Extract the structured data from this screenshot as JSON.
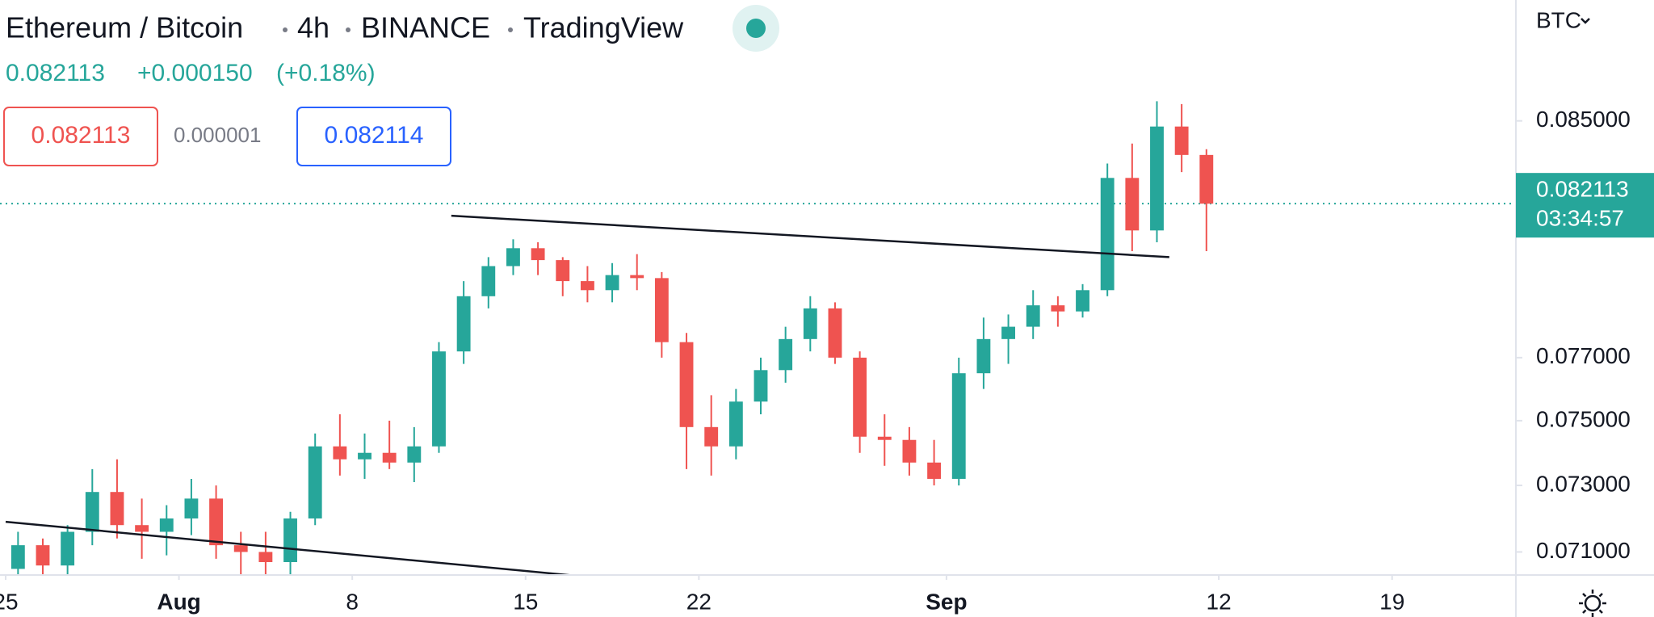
{
  "chart_data": {
    "type": "candlestick",
    "title": "Ethereum / Bitcoin",
    "interval": "4h",
    "exchange": "BINANCE",
    "source": "TradingView",
    "last_text": "0.082113",
    "change_text": "+0.000150",
    "change_pct_text": "(+0.18%)",
    "bid_text": "0.082113",
    "spread_text": "0.000001",
    "ask_text": "0.082114",
    "currency": "BTC",
    "last_price": 0.082113,
    "countdown": "03:34:57",
    "up_color": "#26a69a",
    "down_color": "#ef5350",
    "yscale": "log",
    "ylim": [
      0.07032,
      0.0894
    ],
    "yticks": [
      {
        "value": 0.071,
        "label": "0.071000"
      },
      {
        "value": 0.073,
        "label": "0.073000"
      },
      {
        "value": 0.075,
        "label": "0.075000"
      },
      {
        "value": 0.077,
        "label": "0.077000"
      },
      {
        "value": 0.085,
        "label": "0.085000"
      }
    ],
    "xlim": [
      "07-25",
      "09-24"
    ],
    "xticks": [
      {
        "value": "07-25",
        "label": "25"
      },
      {
        "value": "08-01",
        "label": "Aug"
      },
      {
        "value": "08-08",
        "label": "8"
      },
      {
        "value": "08-15",
        "label": "15"
      },
      {
        "value": "08-22",
        "label": "22"
      },
      {
        "value": "09-01",
        "label": "Sep"
      },
      {
        "value": "09-12",
        "label": "12"
      },
      {
        "value": "09-19",
        "label": "19"
      }
    ],
    "x": [
      "07-25",
      "07-26",
      "07-27",
      "07-28",
      "07-29",
      "07-30",
      "07-31",
      "08-01",
      "08-02",
      "08-03",
      "08-04",
      "08-05",
      "08-06",
      "08-07",
      "08-08",
      "08-09",
      "08-10",
      "08-11",
      "08-12",
      "08-13",
      "08-14",
      "08-15",
      "08-16",
      "08-17",
      "08-18",
      "08-19",
      "08-20",
      "08-21",
      "08-22",
      "08-23",
      "08-24",
      "08-25",
      "08-26",
      "08-27",
      "08-28",
      "08-29",
      "08-30",
      "08-31",
      "09-01",
      "09-02",
      "09-03",
      "09-04",
      "09-05",
      "09-06",
      "09-07",
      "09-08",
      "09-09",
      "09-10",
      "09-11"
    ],
    "open": [
      0.0705,
      0.0712,
      0.0706,
      0.0716,
      0.0728,
      0.0718,
      0.0716,
      0.072,
      0.0726,
      0.0712,
      0.071,
      0.0707,
      0.072,
      0.0742,
      0.0738,
      0.074,
      0.0737,
      0.0742,
      0.0772,
      0.079,
      0.08,
      0.0806,
      0.0802,
      0.0795,
      0.0792,
      0.0797,
      0.0796,
      0.0775,
      0.0748,
      0.0742,
      0.0756,
      0.0766,
      0.0776,
      0.0786,
      0.077,
      0.0745,
      0.0744,
      0.0737,
      0.0732,
      0.0765,
      0.0776,
      0.078,
      0.0787,
      0.0785,
      0.0792,
      0.083,
      0.0812,
      0.0848,
      0.0838
    ],
    "high": [
      0.0716,
      0.0714,
      0.0718,
      0.0735,
      0.0738,
      0.0726,
      0.0724,
      0.0732,
      0.073,
      0.0716,
      0.0716,
      0.0722,
      0.0746,
      0.0752,
      0.0746,
      0.075,
      0.0748,
      0.0775,
      0.0795,
      0.0803,
      0.0809,
      0.0808,
      0.0803,
      0.08,
      0.0801,
      0.0804,
      0.0798,
      0.0778,
      0.0758,
      0.076,
      0.077,
      0.078,
      0.079,
      0.0788,
      0.0772,
      0.0752,
      0.0748,
      0.0744,
      0.077,
      0.0783,
      0.0784,
      0.0792,
      0.079,
      0.0794,
      0.0835,
      0.0842,
      0.0857,
      0.0856,
      0.084
    ],
    "low": [
      0.0702,
      0.0702,
      0.0703,
      0.0712,
      0.0714,
      0.0708,
      0.0709,
      0.0715,
      0.0708,
      0.0702,
      0.0703,
      0.0703,
      0.0718,
      0.0733,
      0.0732,
      0.0735,
      0.0731,
      0.074,
      0.0768,
      0.0786,
      0.0797,
      0.0797,
      0.079,
      0.0788,
      0.0788,
      0.0792,
      0.077,
      0.0735,
      0.0733,
      0.0738,
      0.0752,
      0.0762,
      0.0772,
      0.0768,
      0.074,
      0.0736,
      0.0733,
      0.073,
      0.073,
      0.076,
      0.0768,
      0.0776,
      0.078,
      0.0783,
      0.079,
      0.0805,
      0.0808,
      0.0832,
      0.0805
    ],
    "close": [
      0.0712,
      0.0706,
      0.0716,
      0.0728,
      0.0718,
      0.0716,
      0.072,
      0.0726,
      0.0712,
      0.071,
      0.0707,
      0.072,
      0.0742,
      0.0738,
      0.074,
      0.0737,
      0.0742,
      0.0772,
      0.079,
      0.08,
      0.0806,
      0.0802,
      0.0795,
      0.0792,
      0.0797,
      0.0796,
      0.0775,
      0.0748,
      0.0742,
      0.0756,
      0.0766,
      0.0776,
      0.0786,
      0.077,
      0.0745,
      0.0744,
      0.0737,
      0.0732,
      0.0765,
      0.0776,
      0.078,
      0.0787,
      0.0785,
      0.0792,
      0.083,
      0.0812,
      0.0848,
      0.0838,
      0.082113
    ],
    "trendlines": [
      {
        "x": [
          "08-12",
          "09-10"
        ],
        "values": [
          0.0817,
          0.0803
        ]
      },
      {
        "x": [
          "07-25",
          "08-17"
        ],
        "values": [
          0.0719,
          0.0703
        ]
      }
    ]
  }
}
